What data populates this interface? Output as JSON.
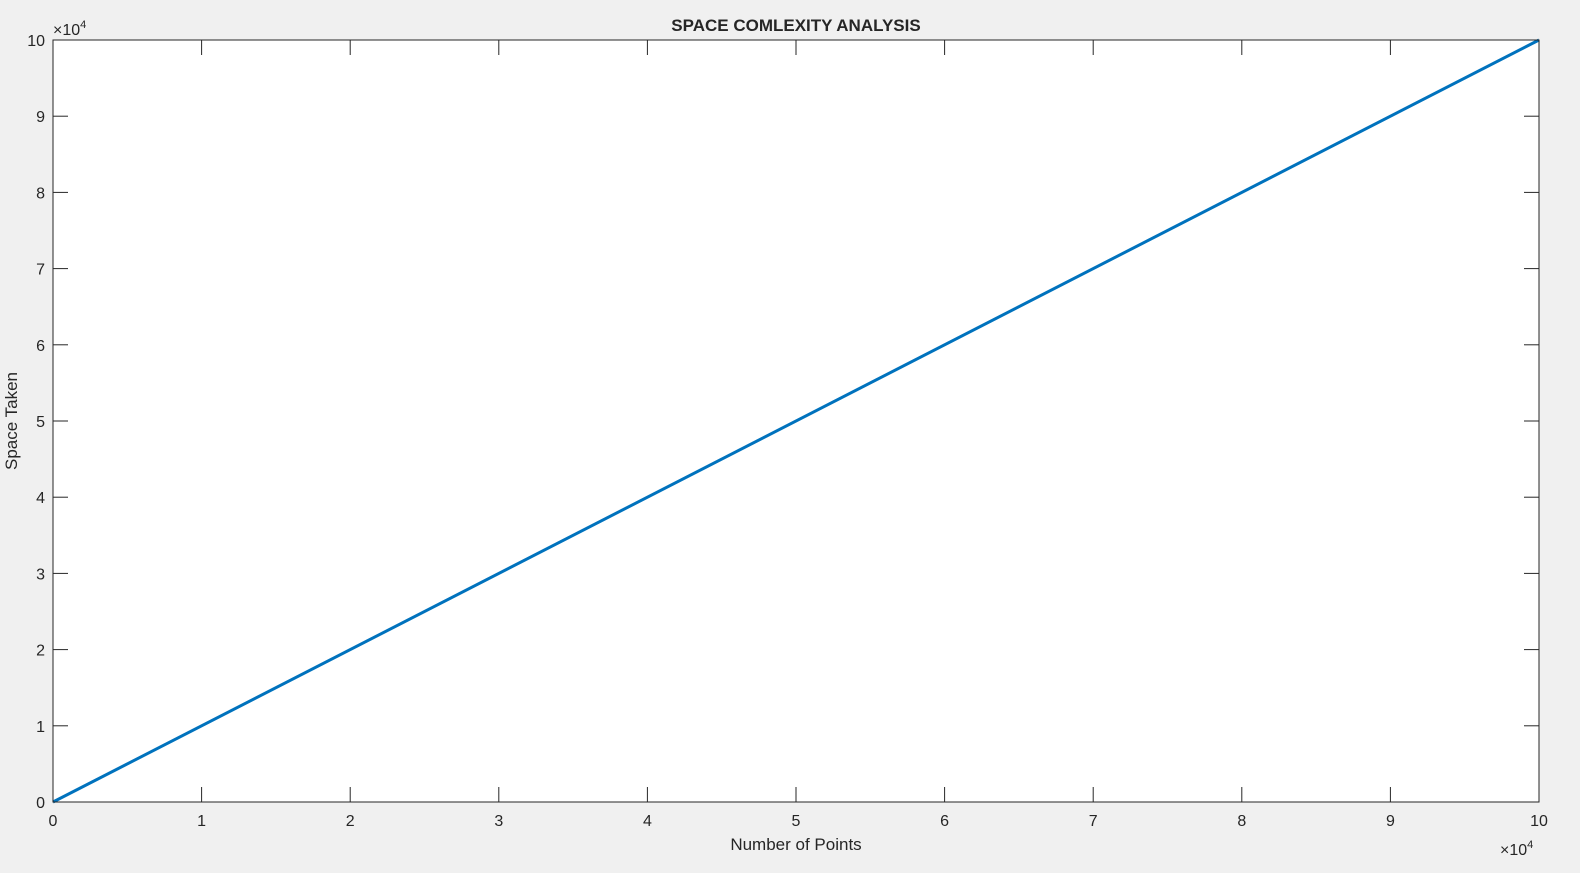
{
  "chart_data": {
    "type": "line",
    "title": "SPACE COMLEXITY ANALYSIS",
    "xlabel": "Number of Points",
    "ylabel": "Space Taken",
    "xlim": [
      0,
      100000
    ],
    "ylim": [
      0,
      100000
    ],
    "x_ticks": [
      0,
      10000,
      20000,
      30000,
      40000,
      50000,
      60000,
      70000,
      80000,
      90000,
      100000
    ],
    "y_ticks": [
      0,
      10000,
      20000,
      30000,
      40000,
      50000,
      60000,
      70000,
      80000,
      90000,
      100000
    ],
    "x_tick_labels": [
      "0",
      "1",
      "2",
      "3",
      "4",
      "5",
      "6",
      "7",
      "8",
      "9",
      "10"
    ],
    "y_tick_labels": [
      "0",
      "1",
      "2",
      "3",
      "4",
      "5",
      "6",
      "7",
      "8",
      "9",
      "10"
    ],
    "x_multiplier": {
      "base": "×10",
      "exp": "4"
    },
    "y_multiplier": {
      "base": "×10",
      "exp": "4"
    },
    "grid": false,
    "series": [
      {
        "color": "#0072bd",
        "x": [
          0,
          100000
        ],
        "y": [
          0,
          100000
        ]
      }
    ]
  }
}
